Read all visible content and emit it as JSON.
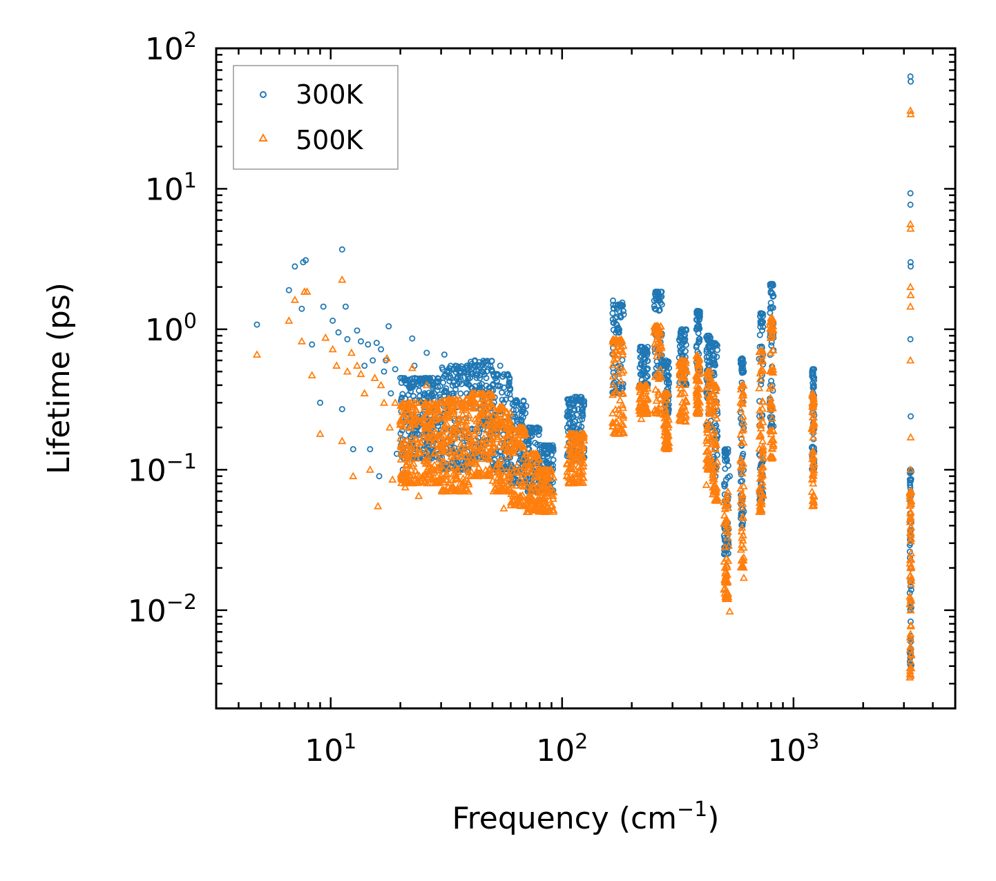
{
  "chart_data": {
    "type": "scatter",
    "title": "",
    "xlabel": "Frequency (cm",
    "xlabel_superscript": "−1",
    "xlabel_suffix": ")",
    "ylabel": "Lifetime (ps)",
    "xscale": "log",
    "yscale": "log",
    "xlim": [
      3.2,
      5000
    ],
    "ylim": [
      0.002,
      100
    ],
    "xticks": [
      {
        "value": 10,
        "base": "10",
        "exp": "1"
      },
      {
        "value": 100,
        "base": "10",
        "exp": "2"
      },
      {
        "value": 1000,
        "base": "10",
        "exp": "3"
      }
    ],
    "yticks": [
      {
        "value": 0.01,
        "base": "10",
        "exp": "−2"
      },
      {
        "value": 0.1,
        "base": "10",
        "exp": "−1"
      },
      {
        "value": 1,
        "base": "10",
        "exp": "0"
      },
      {
        "value": 10,
        "base": "10",
        "exp": "1"
      },
      {
        "value": 100,
        "base": "10",
        "exp": "2"
      }
    ],
    "legend_position": "top-left",
    "series": [
      {
        "name": "300K",
        "marker": "circle",
        "color": "#1f77b4",
        "points": [
          [
            4.8,
            1.08
          ],
          [
            6.6,
            1.9
          ],
          [
            7.0,
            2.8
          ],
          [
            7.5,
            1.4
          ],
          [
            7.6,
            3.0
          ],
          [
            7.8,
            3.1
          ],
          [
            8.3,
            0.78
          ],
          [
            9.0,
            0.3
          ],
          [
            9.3,
            1.45
          ],
          [
            10.2,
            1.15
          ],
          [
            10.8,
            0.95
          ],
          [
            11.2,
            3.7
          ],
          [
            11.2,
            0.27
          ],
          [
            11.6,
            1.45
          ],
          [
            11.8,
            0.85
          ],
          [
            12.5,
            0.14
          ],
          [
            13.0,
            0.98
          ],
          [
            13.5,
            0.82
          ],
          [
            14.0,
            0.55
          ],
          [
            14.5,
            0.78
          ],
          [
            14.8,
            0.14
          ],
          [
            15.2,
            0.6
          ],
          [
            15.8,
            0.8
          ],
          [
            16.2,
            0.09
          ],
          [
            16.5,
            0.72
          ],
          [
            17.0,
            0.5
          ],
          [
            17.3,
            0.6
          ],
          [
            17.8,
            1.05
          ],
          [
            18.2,
            0.35
          ],
          [
            19.0,
            0.52
          ],
          [
            19.3,
            0.13
          ],
          [
            20.0,
            0.45
          ],
          [
            20.5,
            0.1
          ],
          [
            21.0,
            0.32
          ],
          [
            22.0,
            0.38
          ],
          [
            22.5,
            0.86
          ],
          [
            23.0,
            0.55
          ],
          [
            24.0,
            0.3
          ],
          [
            25.0,
            0.25
          ],
          [
            26.0,
            0.68
          ],
          [
            27.0,
            0.22
          ],
          [
            28.0,
            0.35
          ],
          [
            29.0,
            0.42
          ],
          [
            30.0,
            0.3
          ],
          [
            31.0,
            0.66
          ],
          [
            32.0,
            0.5
          ],
          [
            33.0,
            0.45
          ],
          [
            34.0,
            0.35
          ],
          [
            35.0,
            0.52
          ],
          [
            36.0,
            0.42
          ],
          [
            37.0,
            0.3
          ],
          [
            38.0,
            0.5
          ],
          [
            39.0,
            0.55
          ],
          [
            40.0,
            0.45
          ],
          [
            41.0,
            0.38
          ],
          [
            42.0,
            0.6
          ],
          [
            43.0,
            0.48
          ],
          [
            44.0,
            0.4
          ],
          [
            45.0,
            0.5
          ],
          [
            46.0,
            0.35
          ],
          [
            47.0,
            0.45
          ],
          [
            48.0,
            0.3
          ],
          [
            50.0,
            0.4
          ],
          [
            52.0,
            0.48
          ],
          [
            54.0,
            0.55
          ],
          [
            56.0,
            0.3
          ],
          [
            58.0,
            0.35
          ],
          [
            60.0,
            0.32
          ],
          [
            62.0,
            0.25
          ],
          [
            64.0,
            0.22
          ],
          [
            66.0,
            0.2
          ],
          [
            68.0,
            0.18
          ],
          [
            70.0,
            0.16
          ],
          [
            72.0,
            0.14
          ],
          [
            75.0,
            0.13
          ],
          [
            78.0,
            0.12
          ],
          [
            80.0,
            0.14
          ],
          [
            84.0,
            0.1
          ],
          [
            88.0,
            0.11
          ],
          [
            105.0,
            0.24
          ],
          [
            108.0,
            0.28
          ],
          [
            112.0,
            0.3
          ],
          [
            116.0,
            0.31
          ],
          [
            120.0,
            0.33
          ],
          [
            166.0,
            1.6
          ],
          [
            170.0,
            1.2
          ],
          [
            175.0,
            1.0
          ],
          [
            182.0,
            1.55
          ],
          [
            220.0,
            0.75
          ],
          [
            230.0,
            0.72
          ],
          [
            250.0,
            1.6
          ],
          [
            255.0,
            1.85
          ],
          [
            262.0,
            1.7
          ],
          [
            270.0,
            1.5
          ],
          [
            280.0,
            0.55
          ],
          [
            285.0,
            0.21
          ],
          [
            330.0,
            1.0
          ],
          [
            340.0,
            0.85
          ],
          [
            385.0,
            1.35
          ],
          [
            390.0,
            1.25
          ],
          [
            420.0,
            0.88
          ],
          [
            430.0,
            0.75
          ],
          [
            450.0,
            0.8
          ],
          [
            460.0,
            0.09
          ],
          [
            520.0,
            0.14
          ],
          [
            530.0,
            0.09
          ],
          [
            600.0,
            0.62
          ],
          [
            610.0,
            0.5
          ],
          [
            720.0,
            1.3
          ],
          [
            730.0,
            1.1
          ],
          [
            800.0,
            2.1
          ],
          [
            810.0,
            1.8
          ],
          [
            1210.0,
            0.52
          ],
          [
            1220.0,
            0.45
          ],
          [
            3200.0,
            63.0
          ],
          [
            3210.0,
            58.0
          ],
          [
            3200.0,
            9.3
          ],
          [
            3200.0,
            7.7
          ],
          [
            3205.0,
            3.0
          ],
          [
            3210.0,
            2.8
          ],
          [
            3200.0,
            0.85
          ],
          [
            3210.0,
            0.24
          ],
          [
            3200.0,
            0.1
          ],
          [
            3210.0,
            0.07
          ],
          [
            3200.0,
            0.03
          ],
          [
            3210.0,
            0.02
          ],
          [
            3200.0,
            0.01
          ],
          [
            3210.0,
            0.005
          ]
        ],
        "bands": [
          [
            20,
            30,
            0.12,
            0.45
          ],
          [
            30,
            40,
            0.1,
            0.55
          ],
          [
            40,
            50,
            0.12,
            0.6
          ],
          [
            50,
            60,
            0.1,
            0.48
          ],
          [
            60,
            70,
            0.08,
            0.32
          ],
          [
            70,
            80,
            0.07,
            0.2
          ],
          [
            80,
            92,
            0.07,
            0.15
          ],
          [
            105,
            125,
            0.12,
            0.33
          ],
          [
            165,
            185,
            0.35,
            1.5
          ],
          [
            215,
            235,
            0.4,
            0.75
          ],
          [
            250,
            270,
            0.45,
            1.85
          ],
          [
            275,
            290,
            0.25,
            0.6
          ],
          [
            320,
            345,
            0.4,
            1.0
          ],
          [
            380,
            395,
            0.5,
            1.35
          ],
          [
            420,
            440,
            0.2,
            0.9
          ],
          [
            445,
            470,
            0.1,
            0.8
          ],
          [
            500,
            525,
            0.025,
            0.14
          ],
          [
            590,
            610,
            0.04,
            0.62
          ],
          [
            710,
            740,
            0.06,
            1.3
          ],
          [
            790,
            820,
            0.2,
            2.1
          ],
          [
            1200,
            1230,
            0.1,
            0.52
          ],
          [
            3180,
            3230,
            0.004,
            0.1
          ]
        ]
      },
      {
        "name": "500K",
        "marker": "triangle",
        "color": "#ff7f0e",
        "points": [
          [
            4.8,
            0.66
          ],
          [
            6.6,
            1.15
          ],
          [
            7.0,
            1.62
          ],
          [
            7.5,
            0.82
          ],
          [
            7.7,
            1.85
          ],
          [
            7.9,
            1.85
          ],
          [
            8.3,
            0.47
          ],
          [
            9.0,
            0.18
          ],
          [
            9.5,
            0.87
          ],
          [
            10.2,
            0.72
          ],
          [
            10.6,
            0.55
          ],
          [
            11.2,
            2.25
          ],
          [
            11.2,
            0.16
          ],
          [
            11.8,
            0.5
          ],
          [
            12.3,
            0.68
          ],
          [
            12.5,
            0.09
          ],
          [
            13.0,
            0.55
          ],
          [
            13.5,
            0.48
          ],
          [
            14.0,
            0.35
          ],
          [
            14.8,
            0.1
          ],
          [
            15.5,
            0.45
          ],
          [
            16.0,
            0.055
          ],
          [
            16.5,
            0.4
          ],
          [
            17.0,
            0.3
          ],
          [
            17.5,
            0.62
          ],
          [
            18.0,
            0.2
          ],
          [
            18.5,
            0.085
          ],
          [
            19.0,
            0.3
          ],
          [
            20.0,
            0.22
          ],
          [
            21.0,
            0.075
          ],
          [
            22.0,
            0.2
          ],
          [
            22.5,
            0.53
          ],
          [
            23.0,
            0.3
          ],
          [
            24.0,
            0.065
          ],
          [
            25.0,
            0.18
          ],
          [
            26.0,
            0.4
          ],
          [
            28.0,
            0.1
          ],
          [
            30.0,
            0.15
          ],
          [
            32.0,
            0.3
          ],
          [
            34.0,
            0.25
          ],
          [
            36.0,
            0.2
          ],
          [
            38.0,
            0.3
          ],
          [
            40.0,
            0.28
          ],
          [
            42.0,
            0.35
          ],
          [
            44.0,
            0.3
          ],
          [
            46.0,
            0.25
          ],
          [
            48.0,
            0.3
          ],
          [
            50.0,
            0.22
          ],
          [
            52.0,
            0.2
          ],
          [
            54.0,
            0.25
          ],
          [
            56.0,
            0.053
          ],
          [
            58.0,
            0.2
          ],
          [
            60.0,
            0.18
          ],
          [
            64.0,
            0.15
          ],
          [
            68.0,
            0.12
          ],
          [
            72.0,
            0.1
          ],
          [
            76.0,
            0.09
          ],
          [
            80.0,
            0.08
          ],
          [
            86.0,
            0.07
          ],
          [
            105.0,
            0.09
          ],
          [
            110.0,
            0.15
          ],
          [
            115.0,
            0.16
          ],
          [
            120.0,
            0.17
          ],
          [
            166.0,
            0.85
          ],
          [
            170.0,
            0.7
          ],
          [
            180.0,
            0.75
          ],
          [
            220.0,
            0.23
          ],
          [
            228.0,
            0.35
          ],
          [
            250.0,
            0.95
          ],
          [
            258.0,
            1.05
          ],
          [
            265.0,
            0.9
          ],
          [
            280.0,
            0.35
          ],
          [
            285.0,
            0.15
          ],
          [
            330.0,
            0.6
          ],
          [
            340.0,
            0.5
          ],
          [
            385.0,
            0.65
          ],
          [
            390.0,
            0.6
          ],
          [
            420.0,
            0.078
          ],
          [
            430.0,
            0.5
          ],
          [
            450.0,
            0.4
          ],
          [
            460.0,
            0.14
          ],
          [
            520.0,
            0.016
          ],
          [
            530.0,
            0.0098
          ],
          [
            600.0,
            0.4
          ],
          [
            610.0,
            0.017
          ],
          [
            720.0,
            0.7
          ],
          [
            730.0,
            0.65
          ],
          [
            800.0,
            1.2
          ],
          [
            810.0,
            1.0
          ],
          [
            1210.0,
            0.35
          ],
          [
            1220.0,
            0.3
          ],
          [
            3200.0,
            36.0
          ],
          [
            3210.0,
            34.0
          ],
          [
            3200.0,
            5.6
          ],
          [
            3205.0,
            5.2
          ],
          [
            3200.0,
            2.0
          ],
          [
            3210.0,
            1.75
          ],
          [
            3200.0,
            1.45
          ],
          [
            3200.0,
            0.6
          ],
          [
            3210.0,
            0.17
          ],
          [
            3200.0,
            0.1
          ],
          [
            3210.0,
            0.05
          ],
          [
            3200.0,
            0.02
          ],
          [
            3210.0,
            0.01
          ],
          [
            3200.0,
            0.0035
          ]
        ],
        "bands": [
          [
            20,
            30,
            0.08,
            0.3
          ],
          [
            30,
            40,
            0.07,
            0.32
          ],
          [
            40,
            50,
            0.09,
            0.35
          ],
          [
            50,
            60,
            0.07,
            0.28
          ],
          [
            60,
            70,
            0.055,
            0.2
          ],
          [
            70,
            80,
            0.05,
            0.13
          ],
          [
            80,
            92,
            0.05,
            0.1
          ],
          [
            105,
            125,
            0.08,
            0.18
          ],
          [
            165,
            185,
            0.18,
            0.85
          ],
          [
            215,
            235,
            0.25,
            0.4
          ],
          [
            250,
            270,
            0.25,
            1.05
          ],
          [
            275,
            290,
            0.14,
            0.35
          ],
          [
            320,
            345,
            0.22,
            0.6
          ],
          [
            380,
            395,
            0.25,
            0.65
          ],
          [
            420,
            440,
            0.1,
            0.5
          ],
          [
            445,
            470,
            0.06,
            0.4
          ],
          [
            500,
            525,
            0.012,
            0.07
          ],
          [
            590,
            610,
            0.02,
            0.4
          ],
          [
            710,
            740,
            0.05,
            0.7
          ],
          [
            790,
            820,
            0.12,
            1.2
          ],
          [
            1200,
            1230,
            0.055,
            0.35
          ],
          [
            3180,
            3230,
            0.0033,
            0.07
          ]
        ]
      }
    ]
  }
}
